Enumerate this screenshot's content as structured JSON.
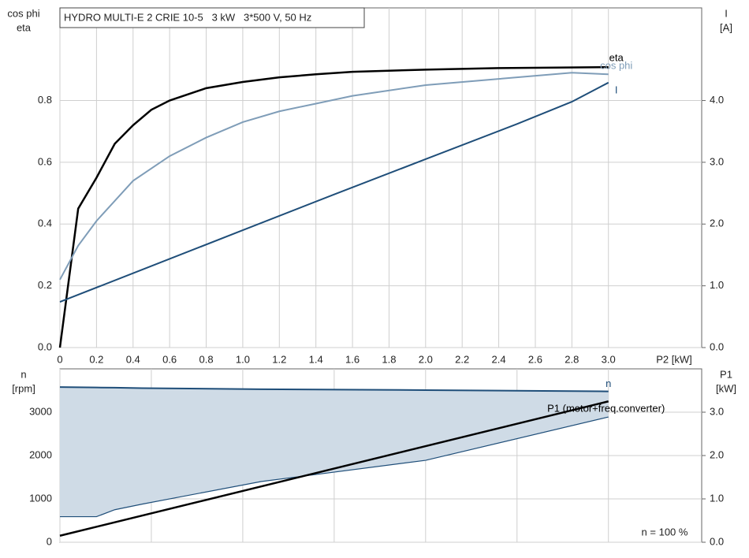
{
  "chart_data": [
    {
      "type": "line",
      "title": "HYDRO MULTI-E 2 CRIE 10-5   3 kW   3*500 V, 50 Hz",
      "xlabel": "P2 [kW]",
      "ylabel": [
        "cos phi",
        "eta"
      ],
      "y2label": [
        "I",
        "[A]"
      ],
      "xlim": [
        0,
        3.51
      ],
      "xticks": [
        {
          "value": 0,
          "label": "0"
        },
        0.2,
        0.4,
        0.6,
        0.8,
        {
          "value": 1,
          "label": "1.0"
        },
        1.2,
        1.4,
        1.6,
        1.8,
        {
          "value": 2,
          "label": "2.0"
        },
        2.2,
        2.4,
        2.6,
        2.8,
        {
          "value": 3,
          "label": "3.0"
        }
      ],
      "ylim": [
        0,
        1.1
      ],
      "yticks": [
        {
          "value": 0,
          "label": "0.0"
        },
        0.2,
        0.4,
        0.6,
        0.8
      ],
      "y2lim": [
        0,
        5.5
      ],
      "y2ticks": [
        {
          "value": 0,
          "label": "0.0"
        },
        {
          "value": 1,
          "label": "1.0"
        },
        {
          "value": 2,
          "label": "2.0"
        },
        {
          "value": 3,
          "label": "3.0"
        },
        {
          "value": 4,
          "label": "4.0"
        }
      ],
      "grid": true,
      "series": [
        {
          "name": "eta",
          "color": "#000000",
          "x": [
            0,
            0.1,
            0.2,
            0.3,
            0.4,
            0.5,
            0.6,
            0.8,
            1.0,
            1.2,
            1.4,
            1.6,
            2.0,
            2.4,
            3.0
          ],
          "values": [
            0,
            0.45,
            0.55,
            0.66,
            0.72,
            0.77,
            0.8,
            0.84,
            0.86,
            0.875,
            0.885,
            0.893,
            0.9,
            0.905,
            0.908
          ]
        },
        {
          "name": "cos phi",
          "color": "#7f9db8",
          "x": [
            0,
            0.1,
            0.2,
            0.4,
            0.6,
            0.8,
            1.0,
            1.2,
            1.4,
            1.6,
            2.0,
            2.4,
            2.8,
            3.0
          ],
          "values": [
            0.22,
            0.33,
            0.41,
            0.54,
            0.62,
            0.68,
            0.73,
            0.765,
            0.79,
            0.815,
            0.85,
            0.87,
            0.89,
            0.885
          ]
        },
        {
          "name": "I",
          "color": "#1f4e79",
          "axis": "y2",
          "x": [
            0,
            0.5,
            1.0,
            1.5,
            2.0,
            2.5,
            2.8,
            3.0
          ],
          "values": [
            0.74,
            1.32,
            1.9,
            2.48,
            3.05,
            3.62,
            3.98,
            4.29
          ]
        }
      ]
    },
    {
      "type": "area_line",
      "annotation": "n = 100 %",
      "ylabel": [
        "n",
        "[rpm]"
      ],
      "y2label": [
        "P1",
        "[kW]"
      ],
      "xlim": [
        0,
        3.51
      ],
      "xticks": [
        0,
        0.5,
        1,
        1.5,
        2,
        2.5,
        3
      ],
      "ylim": [
        0,
        4000
      ],
      "yticks": [
        0,
        1000,
        2000,
        3000
      ],
      "y2lim": [
        0,
        4
      ],
      "y2ticks": [
        {
          "value": 0,
          "label": "0.0"
        },
        {
          "value": 1,
          "label": "1.0"
        },
        {
          "value": 2,
          "label": "2.0"
        },
        {
          "value": 3,
          "label": "3.0"
        }
      ],
      "grid": true,
      "series": [
        {
          "name": "n",
          "color": "#1f4e79",
          "fill": "#cfdbe6",
          "x": [
            0,
            0.2,
            0.3,
            0.45,
            1.1,
            2.0,
            3.0
          ],
          "values": [
            3580,
            3570,
            3565,
            3555,
            3530,
            3510,
            3480
          ],
          "lower": [
            590,
            590,
            750,
            880,
            1400,
            1890,
            2890
          ]
        },
        {
          "name": "P1 (motor+freq.converter)",
          "color": "#000000",
          "axis": "y2",
          "x": [
            0,
            3.0
          ],
          "values": [
            0.15,
            3.25
          ]
        }
      ]
    }
  ]
}
